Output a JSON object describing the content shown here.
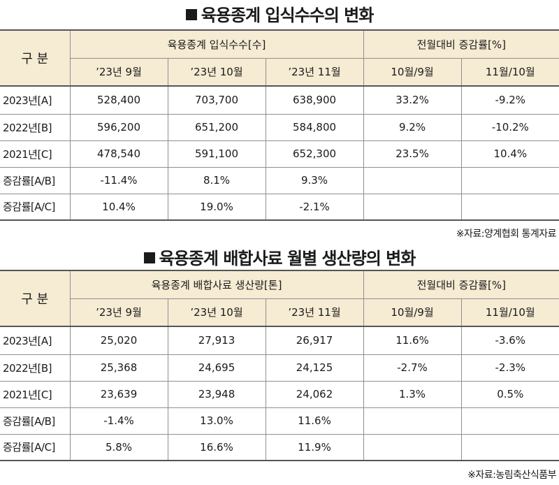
{
  "tables": [
    {
      "title": "육용종계 입식수수의 변화",
      "corner": "구 분",
      "group_main": "육용종계 입식수수[수]",
      "group_rate": "전월대비 증감률[%]",
      "months": [
        "’23년 9월",
        "’23년 10월",
        "’23년 11월"
      ],
      "rate_cols": [
        "10월/9월",
        "11월/10월"
      ],
      "rows": [
        {
          "label": "2023년[A]",
          "cells": [
            "528,400",
            "703,700",
            "638,900",
            "33.2%",
            "-9.2%"
          ]
        },
        {
          "label": "2022년[B]",
          "cells": [
            "596,200",
            "651,200",
            "584,800",
            "9.2%",
            "-10.2%"
          ]
        },
        {
          "label": "2021년[C]",
          "cells": [
            "478,540",
            "591,100",
            "652,300",
            "23.5%",
            "10.4%"
          ]
        },
        {
          "label": "증감률[A/B]",
          "cells": [
            "-11.4%",
            "8.1%",
            "9.3%",
            "",
            ""
          ]
        },
        {
          "label": "증감률[A/C]",
          "cells": [
            "10.4%",
            "19.0%",
            "-2.1%",
            "",
            ""
          ]
        }
      ],
      "source": "※자료:양계협회 통계자료"
    },
    {
      "title": "육용종계 배합사료 월별 생산량의 변화",
      "corner": "구 분",
      "group_main": "육용종계 배합사료 생산량[톤]",
      "group_rate": "전월대비 증감률[%]",
      "months": [
        "’23년 9월",
        "’23년 10월",
        "’23년 11월"
      ],
      "rate_cols": [
        "10월/9월",
        "11월/10월"
      ],
      "rows": [
        {
          "label": "2023년[A]",
          "cells": [
            "25,020",
            "27,913",
            "26,917",
            "11.6%",
            "-3.6%"
          ]
        },
        {
          "label": "2022년[B]",
          "cells": [
            "25,368",
            "24,695",
            "24,125",
            "-2.7%",
            "-2.3%"
          ]
        },
        {
          "label": "2021년[C]",
          "cells": [
            "23,639",
            "23,948",
            "24,062",
            "1.3%",
            "0.5%"
          ]
        },
        {
          "label": "증감률[A/B]",
          "cells": [
            "-1.4%",
            "13.0%",
            "11.6%",
            "",
            ""
          ]
        },
        {
          "label": "증감률[A/C]",
          "cells": [
            "5.8%",
            "16.6%",
            "11.9%",
            "",
            ""
          ]
        }
      ],
      "source": "※자료:농림축산식품부"
    }
  ]
}
